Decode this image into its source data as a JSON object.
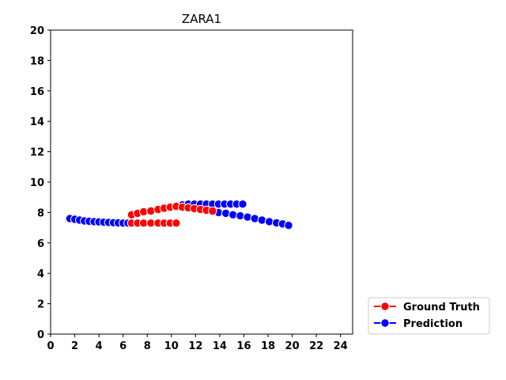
{
  "chart_data": {
    "type": "line",
    "title": "ZARA1",
    "xlabel": "",
    "ylabel": "",
    "xlim": [
      0,
      25
    ],
    "ylim": [
      0,
      20
    ],
    "xticks": [
      0,
      2,
      4,
      6,
      8,
      10,
      12,
      14,
      16,
      18,
      20,
      22,
      24
    ],
    "yticks": [
      0,
      2,
      4,
      6,
      8,
      10,
      12,
      14,
      16,
      18,
      20
    ],
    "grid": false,
    "legend_position": "outside-bottom-right",
    "series": [
      {
        "name": "Prediction",
        "color": "#0000ff",
        "marker": "circle",
        "x": [
          1.6,
          2.0,
          2.4,
          2.8,
          3.2,
          3.6,
          4.0,
          4.4,
          4.8,
          5.2,
          5.6,
          6.0,
          6.4
        ],
        "y": [
          7.6,
          7.55,
          7.5,
          7.45,
          7.42,
          7.4,
          7.38,
          7.36,
          7.35,
          7.33,
          7.32,
          7.3,
          7.3
        ]
      },
      {
        "name": "Prediction",
        "color": "#0000ff",
        "marker": "circle",
        "x": [
          10.9,
          11.4,
          11.9,
          12.4,
          12.9,
          13.4,
          13.9,
          14.4,
          14.9,
          15.4,
          15.9
        ],
        "y": [
          8.5,
          8.55,
          8.55,
          8.55,
          8.55,
          8.55,
          8.55,
          8.55,
          8.55,
          8.55,
          8.55
        ]
      },
      {
        "name": "Prediction",
        "color": "#0000ff",
        "marker": "circle",
        "x": [
          13.9,
          14.5,
          15.1,
          15.7,
          16.3,
          16.9,
          17.5,
          18.1,
          18.7,
          19.2,
          19.7
        ],
        "y": [
          8.0,
          7.95,
          7.85,
          7.78,
          7.7,
          7.6,
          7.5,
          7.4,
          7.32,
          7.25,
          7.15
        ]
      },
      {
        "name": "Ground Truth",
        "color": "#ff0000",
        "marker": "circle",
        "x": [
          6.7,
          7.2,
          7.7,
          8.3,
          8.9,
          9.4,
          9.9,
          10.4
        ],
        "y": [
          7.3,
          7.3,
          7.3,
          7.3,
          7.3,
          7.3,
          7.3,
          7.3
        ]
      },
      {
        "name": "Ground Truth",
        "color": "#ff0000",
        "marker": "circle",
        "x": [
          6.7,
          7.2,
          7.7,
          8.3,
          8.9,
          9.4,
          9.9,
          10.4
        ],
        "y": [
          7.85,
          7.95,
          8.05,
          8.1,
          8.2,
          8.28,
          8.35,
          8.4
        ]
      },
      {
        "name": "Ground Truth",
        "color": "#ff0000",
        "marker": "circle",
        "x": [
          10.4,
          10.9,
          11.4,
          11.9,
          12.4,
          12.9,
          13.4
        ],
        "y": [
          8.4,
          8.35,
          8.3,
          8.25,
          8.2,
          8.15,
          8.1
        ]
      }
    ],
    "legend": [
      {
        "label": "Ground Truth",
        "color": "#ff0000"
      },
      {
        "label": "Prediction",
        "color": "#0000ff"
      }
    ]
  }
}
